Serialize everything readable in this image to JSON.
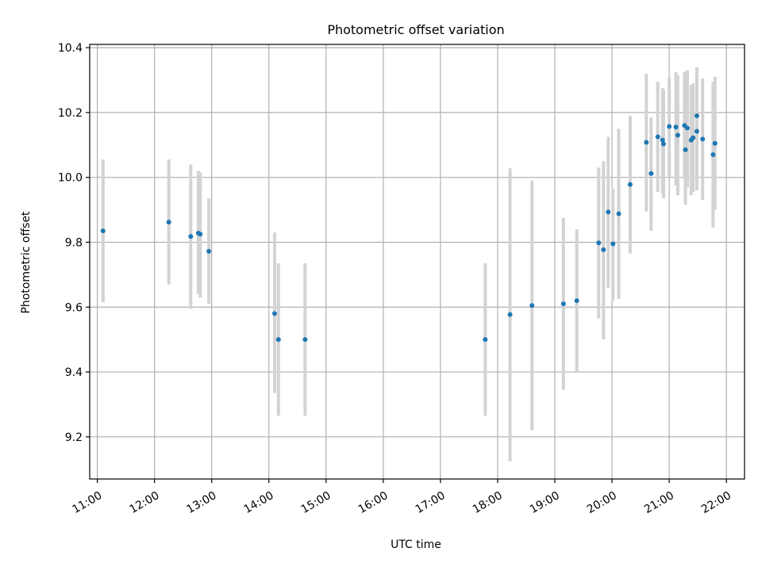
{
  "chart_data": {
    "type": "scatter",
    "title": "Photometric offset variation",
    "xlabel": "UTC time",
    "ylabel": "Photometric offset",
    "grid": true,
    "x_tick_labels": [
      "11:00",
      "12:00",
      "13:00",
      "14:00",
      "15:00",
      "16:00",
      "17:00",
      "18:00",
      "19:00",
      "20:00",
      "21:00",
      "22:00"
    ],
    "y_tick_labels": [
      "9.2",
      "9.4",
      "9.6",
      "9.8",
      "10.0",
      "10.2",
      "10.4"
    ],
    "y_ticks": [
      9.2,
      9.4,
      9.6,
      9.8,
      10.0,
      10.2,
      10.4
    ],
    "xlim": [
      "10:52",
      "22:19"
    ],
    "ylim": [
      9.07,
      10.41
    ],
    "colors": {
      "point": "#1f77b4",
      "errorbar": "#d3d3d3",
      "grid": "#b0b0b0"
    },
    "series": [
      {
        "points": [
          {
            "x": "11:06",
            "y": 9.835,
            "yerr_low": 9.615,
            "yerr_high": 10.055
          },
          {
            "x": "12:15",
            "y": 9.862,
            "yerr_low": 9.67,
            "yerr_high": 10.055
          },
          {
            "x": "12:38",
            "y": 9.818,
            "yerr_low": 9.595,
            "yerr_high": 10.04
          },
          {
            "x": "12:46",
            "y": 9.828,
            "yerr_low": 9.64,
            "yerr_high": 10.02
          },
          {
            "x": "12:48",
            "y": 9.825,
            "yerr_low": 9.63,
            "yerr_high": 10.015
          },
          {
            "x": "12:57",
            "y": 9.772,
            "yerr_low": 9.61,
            "yerr_high": 9.935
          },
          {
            "x": "14:06",
            "y": 9.58,
            "yerr_low": 9.335,
            "yerr_high": 9.83
          },
          {
            "x": "14:10",
            "y": 9.5,
            "yerr_low": 9.265,
            "yerr_high": 9.735
          },
          {
            "x": "14:38",
            "y": 9.5,
            "yerr_low": 9.265,
            "yerr_high": 9.735
          },
          {
            "x": "17:47",
            "y": 9.5,
            "yerr_low": 9.265,
            "yerr_high": 9.735
          },
          {
            "x": "18:13",
            "y": 9.577,
            "yerr_low": 9.125,
            "yerr_high": 10.028
          },
          {
            "x": "18:36",
            "y": 9.605,
            "yerr_low": 9.22,
            "yerr_high": 9.99
          },
          {
            "x": "19:09",
            "y": 9.61,
            "yerr_low": 9.345,
            "yerr_high": 9.875
          },
          {
            "x": "19:23",
            "y": 9.62,
            "yerr_low": 9.4,
            "yerr_high": 9.84
          },
          {
            "x": "19:46",
            "y": 9.798,
            "yerr_low": 9.565,
            "yerr_high": 10.03
          },
          {
            "x": "19:51",
            "y": 9.777,
            "yerr_low": 9.5,
            "yerr_high": 10.05
          },
          {
            "x": "19:56",
            "y": 9.893,
            "yerr_low": 9.66,
            "yerr_high": 10.125
          },
          {
            "x": "20:01",
            "y": 9.795,
            "yerr_low": 9.62,
            "yerr_high": 9.965
          },
          {
            "x": "20:07",
            "y": 9.888,
            "yerr_low": 9.625,
            "yerr_high": 10.15
          },
          {
            "x": "20:19",
            "y": 9.978,
            "yerr_low": 9.765,
            "yerr_high": 10.19
          },
          {
            "x": "20:36",
            "y": 10.108,
            "yerr_low": 9.895,
            "yerr_high": 10.32
          },
          {
            "x": "20:41",
            "y": 10.012,
            "yerr_low": 9.835,
            "yerr_high": 10.185
          },
          {
            "x": "20:48",
            "y": 10.125,
            "yerr_low": 9.955,
            "yerr_high": 10.295
          },
          {
            "x": "20:53",
            "y": 10.115,
            "yerr_low": 9.95,
            "yerr_high": 10.275
          },
          {
            "x": "20:54",
            "y": 10.103,
            "yerr_low": 9.935,
            "yerr_high": 10.27
          },
          {
            "x": "21:00",
            "y": 10.157,
            "yerr_low": 10.0,
            "yerr_high": 10.31
          },
          {
            "x": "21:07",
            "y": 10.155,
            "yerr_low": 9.975,
            "yerr_high": 10.325
          },
          {
            "x": "21:09",
            "y": 10.13,
            "yerr_low": 9.945,
            "yerr_high": 10.315
          },
          {
            "x": "21:16",
            "y": 10.16,
            "yerr_low": 9.995,
            "yerr_high": 10.325
          },
          {
            "x": "21:17",
            "y": 10.085,
            "yerr_low": 9.915,
            "yerr_high": 10.255
          },
          {
            "x": "21:19",
            "y": 10.152,
            "yerr_low": 9.97,
            "yerr_high": 10.33
          },
          {
            "x": "21:23",
            "y": 10.115,
            "yerr_low": 9.945,
            "yerr_high": 10.285
          },
          {
            "x": "21:25",
            "y": 10.122,
            "yerr_low": 9.955,
            "yerr_high": 10.29
          },
          {
            "x": "21:29",
            "y": 10.19,
            "yerr_low": 10.04,
            "yerr_high": 10.34
          },
          {
            "x": "21:29",
            "y": 10.142,
            "yerr_low": 9.96,
            "yerr_high": 10.325
          },
          {
            "x": "21:35",
            "y": 10.118,
            "yerr_low": 9.93,
            "yerr_high": 10.305
          },
          {
            "x": "21:46",
            "y": 10.07,
            "yerr_low": 9.845,
            "yerr_high": 10.295
          },
          {
            "x": "21:48",
            "y": 10.105,
            "yerr_low": 9.9,
            "yerr_high": 10.31
          }
        ]
      }
    ]
  }
}
